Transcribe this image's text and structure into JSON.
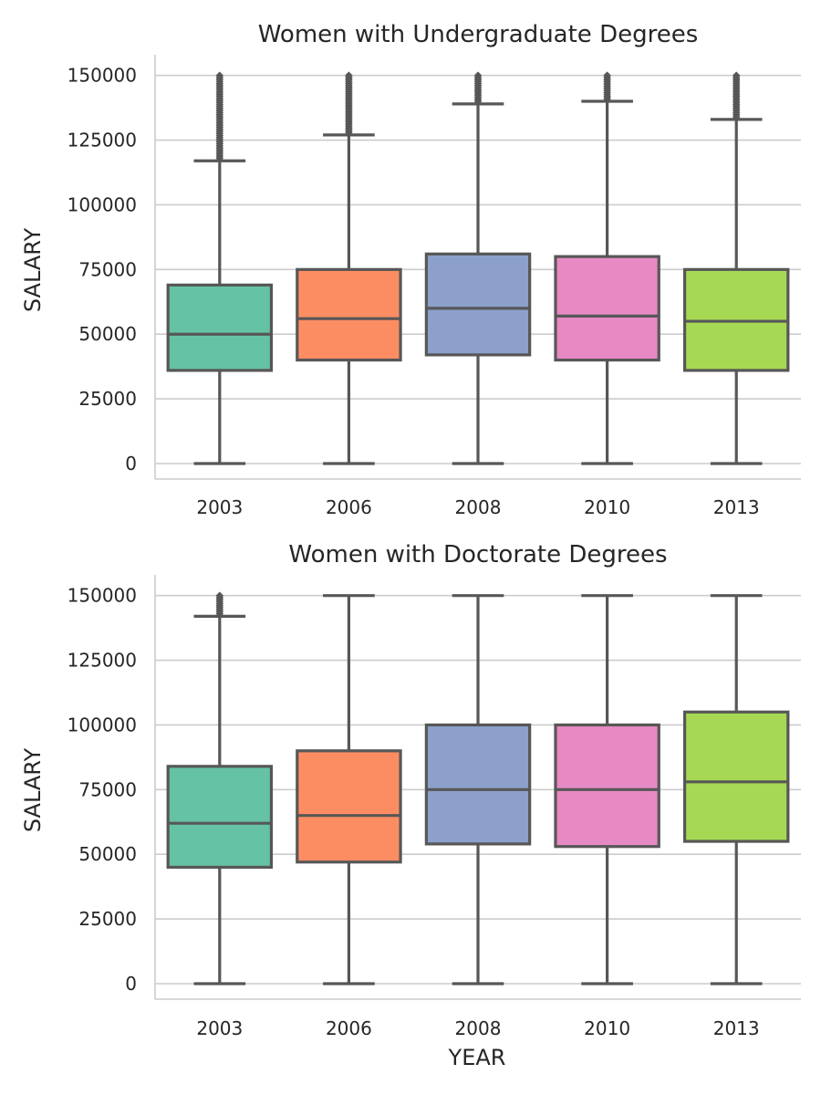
{
  "chart_data": [
    {
      "type": "box",
      "title": "Women with Undergraduate Degrees",
      "xlabel": "",
      "ylabel": "SALARY",
      "ylim": [
        -6000,
        158000
      ],
      "yticks": [
        0,
        25000,
        50000,
        75000,
        100000,
        125000,
        150000
      ],
      "grid": "horizontal",
      "categories": [
        "2003",
        "2006",
        "2008",
        "2010",
        "2013"
      ],
      "colors": [
        "#66c2a5",
        "#fc8d62",
        "#8da0cb",
        "#e78ac3",
        "#a6d854"
      ],
      "boxes": [
        {
          "whisker_low": 0,
          "q1": 36000,
          "median": 50000,
          "q3": 69000,
          "whisker_high": 117000,
          "outliers_range": [
            118000,
            150000
          ]
        },
        {
          "whisker_low": 0,
          "q1": 40000,
          "median": 56000,
          "q3": 75000,
          "whisker_high": 127000,
          "outliers_range": [
            128000,
            150000
          ]
        },
        {
          "whisker_low": 0,
          "q1": 42000,
          "median": 60000,
          "q3": 81000,
          "whisker_high": 139000,
          "outliers_range": [
            140000,
            150000
          ]
        },
        {
          "whisker_low": 0,
          "q1": 40000,
          "median": 57000,
          "q3": 80000,
          "whisker_high": 140000,
          "outliers_range": [
            141000,
            150000
          ]
        },
        {
          "whisker_low": 0,
          "q1": 36000,
          "median": 55000,
          "q3": 75000,
          "whisker_high": 133000,
          "outliers_range": [
            134000,
            150000
          ]
        }
      ]
    },
    {
      "type": "box",
      "title": "Women with Doctorate Degrees",
      "xlabel": "YEAR",
      "ylabel": "SALARY",
      "ylim": [
        -6000,
        158000
      ],
      "yticks": [
        0,
        25000,
        50000,
        75000,
        100000,
        125000,
        150000
      ],
      "grid": "horizontal",
      "categories": [
        "2003",
        "2006",
        "2008",
        "2010",
        "2013"
      ],
      "colors": [
        "#66c2a5",
        "#fc8d62",
        "#8da0cb",
        "#e78ac3",
        "#a6d854"
      ],
      "boxes": [
        {
          "whisker_low": 0,
          "q1": 45000,
          "median": 62000,
          "q3": 84000,
          "whisker_high": 142000,
          "outliers_range": [
            143000,
            150000
          ]
        },
        {
          "whisker_low": 0,
          "q1": 47000,
          "median": 65000,
          "q3": 90000,
          "whisker_high": 150000
        },
        {
          "whisker_low": 0,
          "q1": 54000,
          "median": 75000,
          "q3": 100000,
          "whisker_high": 150000
        },
        {
          "whisker_low": 0,
          "q1": 53000,
          "median": 75000,
          "q3": 100000,
          "whisker_high": 150000
        },
        {
          "whisker_low": 0,
          "q1": 55000,
          "median": 78000,
          "q3": 105000,
          "whisker_high": 150000
        }
      ]
    }
  ]
}
